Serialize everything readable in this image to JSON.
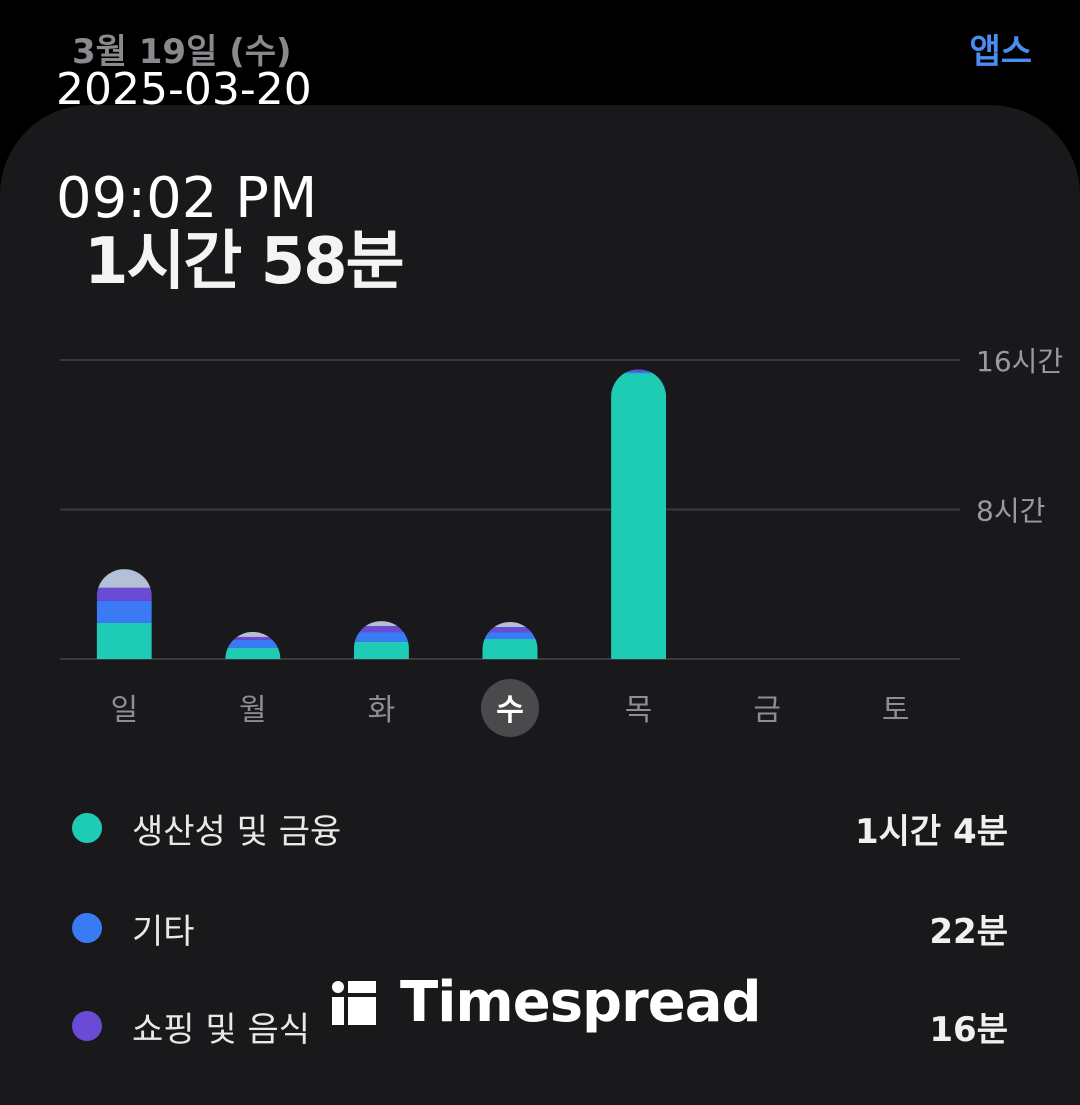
{
  "header": {
    "date": "3월 19일 (수)",
    "apps_link": "앱스"
  },
  "overlay": {
    "date_stamp": "2025-03-20",
    "time_stamp": "09:02 PM"
  },
  "summary": {
    "total": "1시간 58분"
  },
  "colors": {
    "productivity": "#1ecbb4",
    "other": "#3a7bf5",
    "shopping": "#6a4bd6",
    "rest": "#b4c0d8",
    "accent": "#4a8cf0"
  },
  "chart_data": {
    "type": "bar",
    "stacked": true,
    "categories": [
      "일",
      "월",
      "화",
      "수",
      "목",
      "금",
      "토"
    ],
    "selected": "수",
    "ylim": [
      0,
      16
    ],
    "yticks": [
      {
        "value": 16,
        "label": "16시간"
      },
      {
        "value": 8,
        "label": "8시간"
      }
    ],
    "grid": true,
    "series": [
      {
        "name": "생산성 및 금융",
        "color": "#1ecbb4",
        "values": [
          1.93,
          0.59,
          0.91,
          1.07,
          15.3,
          0,
          0
        ]
      },
      {
        "name": "기타",
        "color": "#3a7bf5",
        "values": [
          1.18,
          0.43,
          0.53,
          0.37,
          0.1,
          0,
          0
        ]
      },
      {
        "name": "쇼핑 및 음식",
        "color": "#6a4bd6",
        "values": [
          0.7,
          0.16,
          0.32,
          0.27,
          0.1,
          0,
          0
        ]
      },
      {
        "color": "#b4c0d8",
        "values": [
          1.0,
          0.27,
          0.27,
          0.27,
          0,
          0,
          0
        ]
      }
    ]
  },
  "legend": [
    {
      "name": "생산성 및 금융",
      "value": "1시간 4분",
      "color": "#1ecbb4"
    },
    {
      "name": "기타",
      "value": "22분",
      "color": "#3a7bf5"
    },
    {
      "name": "쇼핑 및 음식",
      "value": "16분",
      "color": "#6a4bd6"
    }
  ],
  "watermark": {
    "text": "Timespread"
  }
}
